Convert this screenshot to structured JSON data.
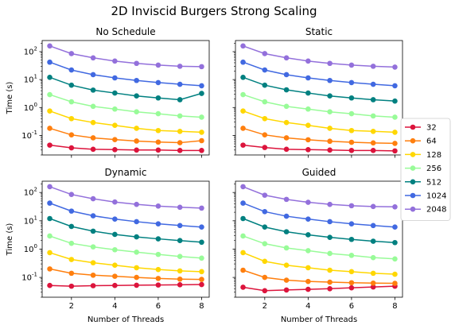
{
  "figure": {
    "title": "2D Inviscid Burgers Strong Scaling"
  },
  "legend": {
    "placement": "right",
    "entries": [
      "32",
      "64",
      "128",
      "256",
      "512",
      "1024",
      "2048"
    ]
  },
  "colors": [
    "#dc143c",
    "#ff7f0e",
    "#ffd700",
    "#98fb98",
    "#008080",
    "#4169e1",
    "#9370db"
  ],
  "chart_data": [
    {
      "type": "line",
      "title": "No Schedule",
      "xlabel": "",
      "ylabel": "Time (s)",
      "x": [
        1,
        2,
        3,
        4,
        5,
        6,
        7,
        8
      ],
      "xticks": [
        "2",
        "4",
        "6",
        "8"
      ],
      "xlim": [
        0.65,
        8.35
      ],
      "yscale": "log",
      "ylim": [
        0.02,
        250
      ],
      "yticks": [
        "10^-1",
        "10^0",
        "10^1",
        "10^2"
      ],
      "grid": false,
      "series": [
        {
          "name": "32",
          "values": [
            0.045,
            0.036,
            0.032,
            0.031,
            0.03,
            0.03,
            0.029,
            0.029
          ]
        },
        {
          "name": "64",
          "values": [
            0.18,
            0.105,
            0.082,
            0.071,
            0.063,
            0.058,
            0.055,
            0.065
          ]
        },
        {
          "name": "128",
          "values": [
            0.75,
            0.4,
            0.29,
            0.23,
            0.18,
            0.15,
            0.14,
            0.13
          ]
        },
        {
          "name": "256",
          "values": [
            2.9,
            1.6,
            1.1,
            0.88,
            0.7,
            0.6,
            0.5,
            0.45
          ]
        },
        {
          "name": "512",
          "values": [
            12,
            6.3,
            4.2,
            3.3,
            2.6,
            2.2,
            1.9,
            3.2
          ]
        },
        {
          "name": "1024",
          "values": [
            42,
            22,
            15,
            11.5,
            9.3,
            7.8,
            6.8,
            6.0
          ]
        },
        {
          "name": "2048",
          "values": [
            160,
            85,
            60,
            46,
            38,
            33,
            30,
            29
          ]
        }
      ]
    },
    {
      "type": "line",
      "title": "Static",
      "xlabel": "",
      "ylabel": "",
      "x": [
        1,
        2,
        3,
        4,
        5,
        6,
        7,
        8
      ],
      "xticks": [
        "2",
        "4",
        "6",
        "8"
      ],
      "xlim": [
        0.65,
        8.35
      ],
      "yscale": "log",
      "ylim": [
        0.02,
        250
      ],
      "grid": false,
      "series": [
        {
          "name": "32",
          "values": [
            0.045,
            0.037,
            0.032,
            0.031,
            0.03,
            0.029,
            0.029,
            0.028
          ]
        },
        {
          "name": "64",
          "values": [
            0.18,
            0.105,
            0.082,
            0.07,
            0.062,
            0.057,
            0.054,
            0.052
          ]
        },
        {
          "name": "128",
          "values": [
            0.75,
            0.4,
            0.29,
            0.23,
            0.18,
            0.15,
            0.14,
            0.13
          ]
        },
        {
          "name": "256",
          "values": [
            2.9,
            1.6,
            1.1,
            0.88,
            0.7,
            0.6,
            0.5,
            0.45
          ]
        },
        {
          "name": "512",
          "values": [
            12,
            6.3,
            4.3,
            3.3,
            2.6,
            2.2,
            1.9,
            1.7
          ]
        },
        {
          "name": "1024",
          "values": [
            42,
            22,
            15,
            11.5,
            9.3,
            7.8,
            6.8,
            6.0
          ]
        },
        {
          "name": "2048",
          "values": [
            160,
            85,
            60,
            46,
            38,
            33,
            30,
            28
          ]
        }
      ]
    },
    {
      "type": "line",
      "title": "Dynamic",
      "xlabel": "Number of Threads",
      "ylabel": "Time (s)",
      "x": [
        1,
        2,
        3,
        4,
        5,
        6,
        7,
        8
      ],
      "xticks": [
        "2",
        "4",
        "6",
        "8"
      ],
      "xlim": [
        0.65,
        8.35
      ],
      "yscale": "log",
      "ylim": [
        0.02,
        250
      ],
      "yticks": [
        "10^-1",
        "10^0",
        "10^1",
        "10^2"
      ],
      "grid": false,
      "series": [
        {
          "name": "32",
          "values": [
            0.052,
            0.049,
            0.051,
            0.052,
            0.053,
            0.054,
            0.055,
            0.056
          ]
        },
        {
          "name": "64",
          "values": [
            0.2,
            0.14,
            0.12,
            0.11,
            0.1,
            0.092,
            0.087,
            0.085
          ]
        },
        {
          "name": "128",
          "values": [
            0.75,
            0.43,
            0.33,
            0.27,
            0.22,
            0.19,
            0.17,
            0.16
          ]
        },
        {
          "name": "256",
          "values": [
            2.9,
            1.6,
            1.2,
            0.95,
            0.78,
            0.65,
            0.55,
            0.48
          ]
        },
        {
          "name": "512",
          "values": [
            12,
            6.3,
            4.3,
            3.3,
            2.7,
            2.3,
            2.0,
            1.75
          ]
        },
        {
          "name": "1024",
          "values": [
            42,
            22,
            15,
            11.5,
            9.3,
            7.8,
            6.8,
            6.0
          ]
        },
        {
          "name": "2048",
          "values": [
            160,
            85,
            60,
            46,
            38,
            33,
            30,
            28
          ]
        }
      ]
    },
    {
      "type": "line",
      "title": "Guided",
      "xlabel": "Number of Threads",
      "ylabel": "",
      "x": [
        1,
        2,
        3,
        4,
        5,
        6,
        7,
        8
      ],
      "xticks": [
        "2",
        "4",
        "6",
        "8"
      ],
      "xlim": [
        0.65,
        8.35
      ],
      "yscale": "log",
      "ylim": [
        0.02,
        250
      ],
      "grid": false,
      "series": [
        {
          "name": "32",
          "values": [
            0.045,
            0.034,
            0.036,
            0.038,
            0.04,
            0.043,
            0.046,
            0.049
          ]
        },
        {
          "name": "64",
          "values": [
            0.18,
            0.1,
            0.08,
            0.072,
            0.068,
            0.065,
            0.063,
            0.062
          ]
        },
        {
          "name": "128",
          "values": [
            0.75,
            0.37,
            0.27,
            0.22,
            0.18,
            0.16,
            0.14,
            0.13
          ]
        },
        {
          "name": "256",
          "values": [
            2.9,
            1.55,
            1.1,
            0.88,
            0.7,
            0.6,
            0.5,
            0.45
          ]
        },
        {
          "name": "512",
          "values": [
            12,
            6.0,
            4.1,
            3.2,
            2.6,
            2.2,
            1.9,
            1.7
          ]
        },
        {
          "name": "1024",
          "values": [
            42,
            21,
            14.5,
            11.5,
            9.3,
            7.8,
            6.8,
            6.0
          ]
        },
        {
          "name": "2048",
          "values": [
            160,
            80,
            57,
            45,
            38,
            34,
            32,
            31
          ]
        }
      ]
    }
  ]
}
